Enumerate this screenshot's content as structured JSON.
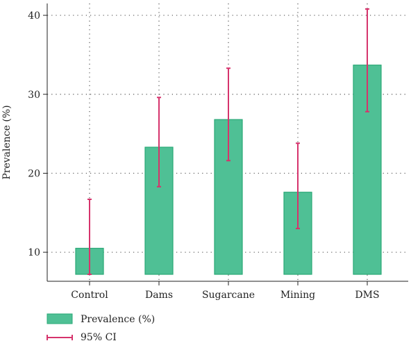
{
  "chart_data": {
    "type": "bar",
    "categories": [
      "Control",
      "Dams",
      "Sugarcane",
      "Mining",
      "DMS"
    ],
    "series": [
      {
        "name": "Prevalence (%)",
        "values": [
          10.5,
          23.3,
          26.8,
          17.6,
          33.7
        ],
        "ci_lower": [
          7.2,
          18.3,
          21.6,
          13.0,
          27.8
        ],
        "ci_upper": [
          16.7,
          29.6,
          33.3,
          23.8,
          40.8
        ]
      }
    ],
    "ylabel": "Prevalence (%)",
    "xlabel": "",
    "ylim": [
      7.2,
      41.5
    ],
    "yticks": [
      10,
      20,
      30,
      40
    ],
    "grid": true,
    "legend": {
      "placement": "bottom-left",
      "entries": [
        "Prevalence (%)",
        "95% CI"
      ]
    },
    "colors": {
      "bar_fill": "#4fc095",
      "bar_stroke": "#2aa876",
      "error_bar": "#d6336c",
      "grid": "#555555",
      "axis": "#222222"
    }
  }
}
